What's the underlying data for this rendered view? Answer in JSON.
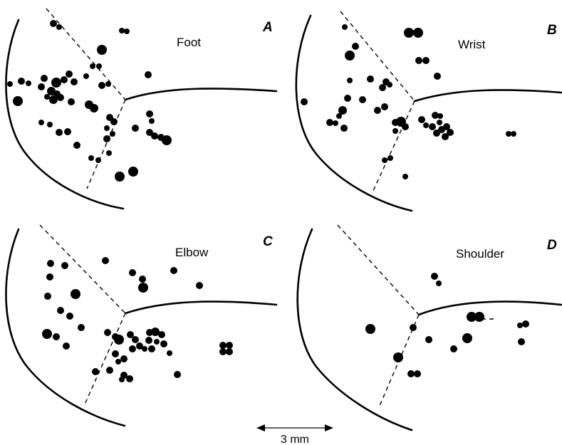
{
  "panels": [
    {
      "letter": "A",
      "label": "Foot"
    },
    {
      "letter": "B",
      "label": "Wrist"
    },
    {
      "letter": "C",
      "label": "Elbow"
    },
    {
      "letter": "D",
      "label": "Shoulder"
    }
  ],
  "scale_bar": {
    "label": "3 mm"
  }
}
